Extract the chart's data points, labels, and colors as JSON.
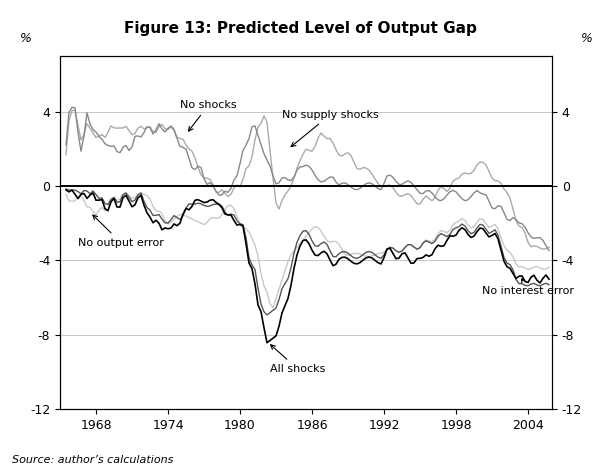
{
  "title": "Figure 13: Predicted Level of Output Gap",
  "source": "Source: author’s calculations",
  "ylim": [
    -12,
    7
  ],
  "yticks": [
    -12,
    -8,
    -4,
    0,
    4
  ],
  "xticks": [
    1968,
    1974,
    1980,
    1986,
    1992,
    1998,
    2004
  ],
  "xmin": 1965.0,
  "xmax": 2006.0,
  "background_color": "#ffffff",
  "color_all_shocks": "#000000",
  "color_no_shocks": "#888888",
  "color_no_supply": "#aaaaaa",
  "color_no_output": "#c8c8c8",
  "color_no_interest": "#555555",
  "lw_main": 1.0,
  "lw_zero": 1.4
}
